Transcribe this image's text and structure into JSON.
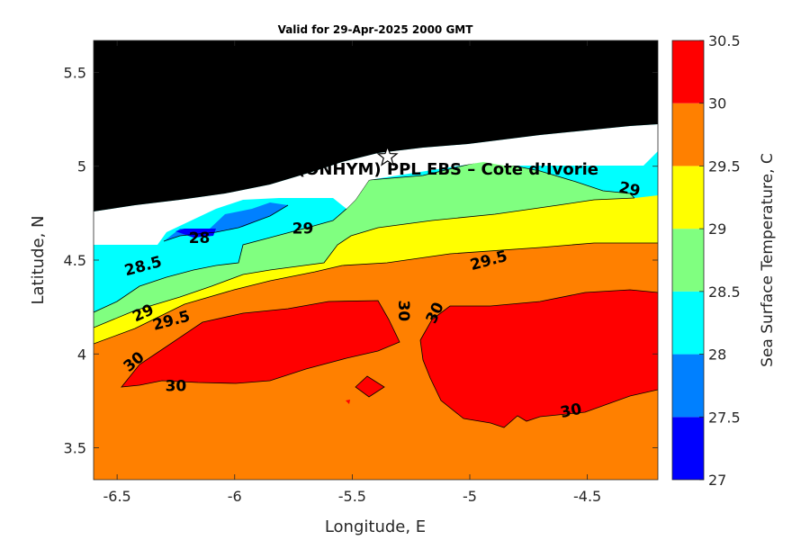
{
  "chart_data": {
    "type": "heatmap",
    "title": "Valid for 29-Apr-2025 2000 GMT",
    "xlabel": "Longitude, E",
    "ylabel": "Latitude, N",
    "xlim": [
      -6.6,
      -4.2
    ],
    "ylim": [
      3.33,
      5.67
    ],
    "x_ticks": [
      "-6.5",
      "-6",
      "-5.5",
      "-5",
      "-4.5"
    ],
    "y_ticks": [
      "3.5",
      "4",
      "4.5",
      "5",
      "5.5"
    ],
    "overlay_text": "(ONHYM) PPL EBS  – Cote d’Ivorie",
    "marker": {
      "lon": -5.35,
      "lat": 5.05,
      "shape": "star"
    },
    "colorbar": {
      "label": "Sea Surface Temperature, C",
      "levels": [
        27,
        27.5,
        28,
        28.5,
        29,
        29.5,
        30,
        30.5
      ],
      "tick_labels": [
        "27",
        "27.5",
        "28",
        "28.5",
        "29",
        "29.5",
        "30",
        "30.5"
      ],
      "colors": [
        "#0000ff",
        "#0080ff",
        "#00ffff",
        "#80ff80",
        "#ffff00",
        "#ff8000",
        "#ff0000"
      ]
    },
    "contour_labels": [
      {
        "text": "28",
        "lon": -6.15,
        "lat": 4.62,
        "angle": 0
      },
      {
        "text": "28.5",
        "lon": -6.39,
        "lat": 4.47,
        "angle": -15
      },
      {
        "text": "29",
        "lon": -6.39,
        "lat": 4.22,
        "angle": -25
      },
      {
        "text": "29.5",
        "lon": -6.27,
        "lat": 4.18,
        "angle": -15
      },
      {
        "text": "29",
        "lon": -5.71,
        "lat": 4.67,
        "angle": 0
      },
      {
        "text": "29.5",
        "lon": -4.92,
        "lat": 4.5,
        "angle": -15
      },
      {
        "text": "29",
        "lon": -4.32,
        "lat": 4.88,
        "angle": 12
      },
      {
        "text": "30",
        "lon": -5.28,
        "lat": 4.23,
        "angle": 90
      },
      {
        "text": "30",
        "lon": -5.15,
        "lat": 4.22,
        "angle": -65
      },
      {
        "text": "30",
        "lon": -6.43,
        "lat": 3.96,
        "angle": -40
      },
      {
        "text": "30",
        "lon": -6.25,
        "lat": 3.83,
        "angle": 0
      },
      {
        "text": "30",
        "lon": -4.57,
        "lat": 3.7,
        "angle": -12
      }
    ]
  },
  "colors": {
    "land": "#000000",
    "nodata": "#ffffff",
    "axis": "#262626"
  }
}
